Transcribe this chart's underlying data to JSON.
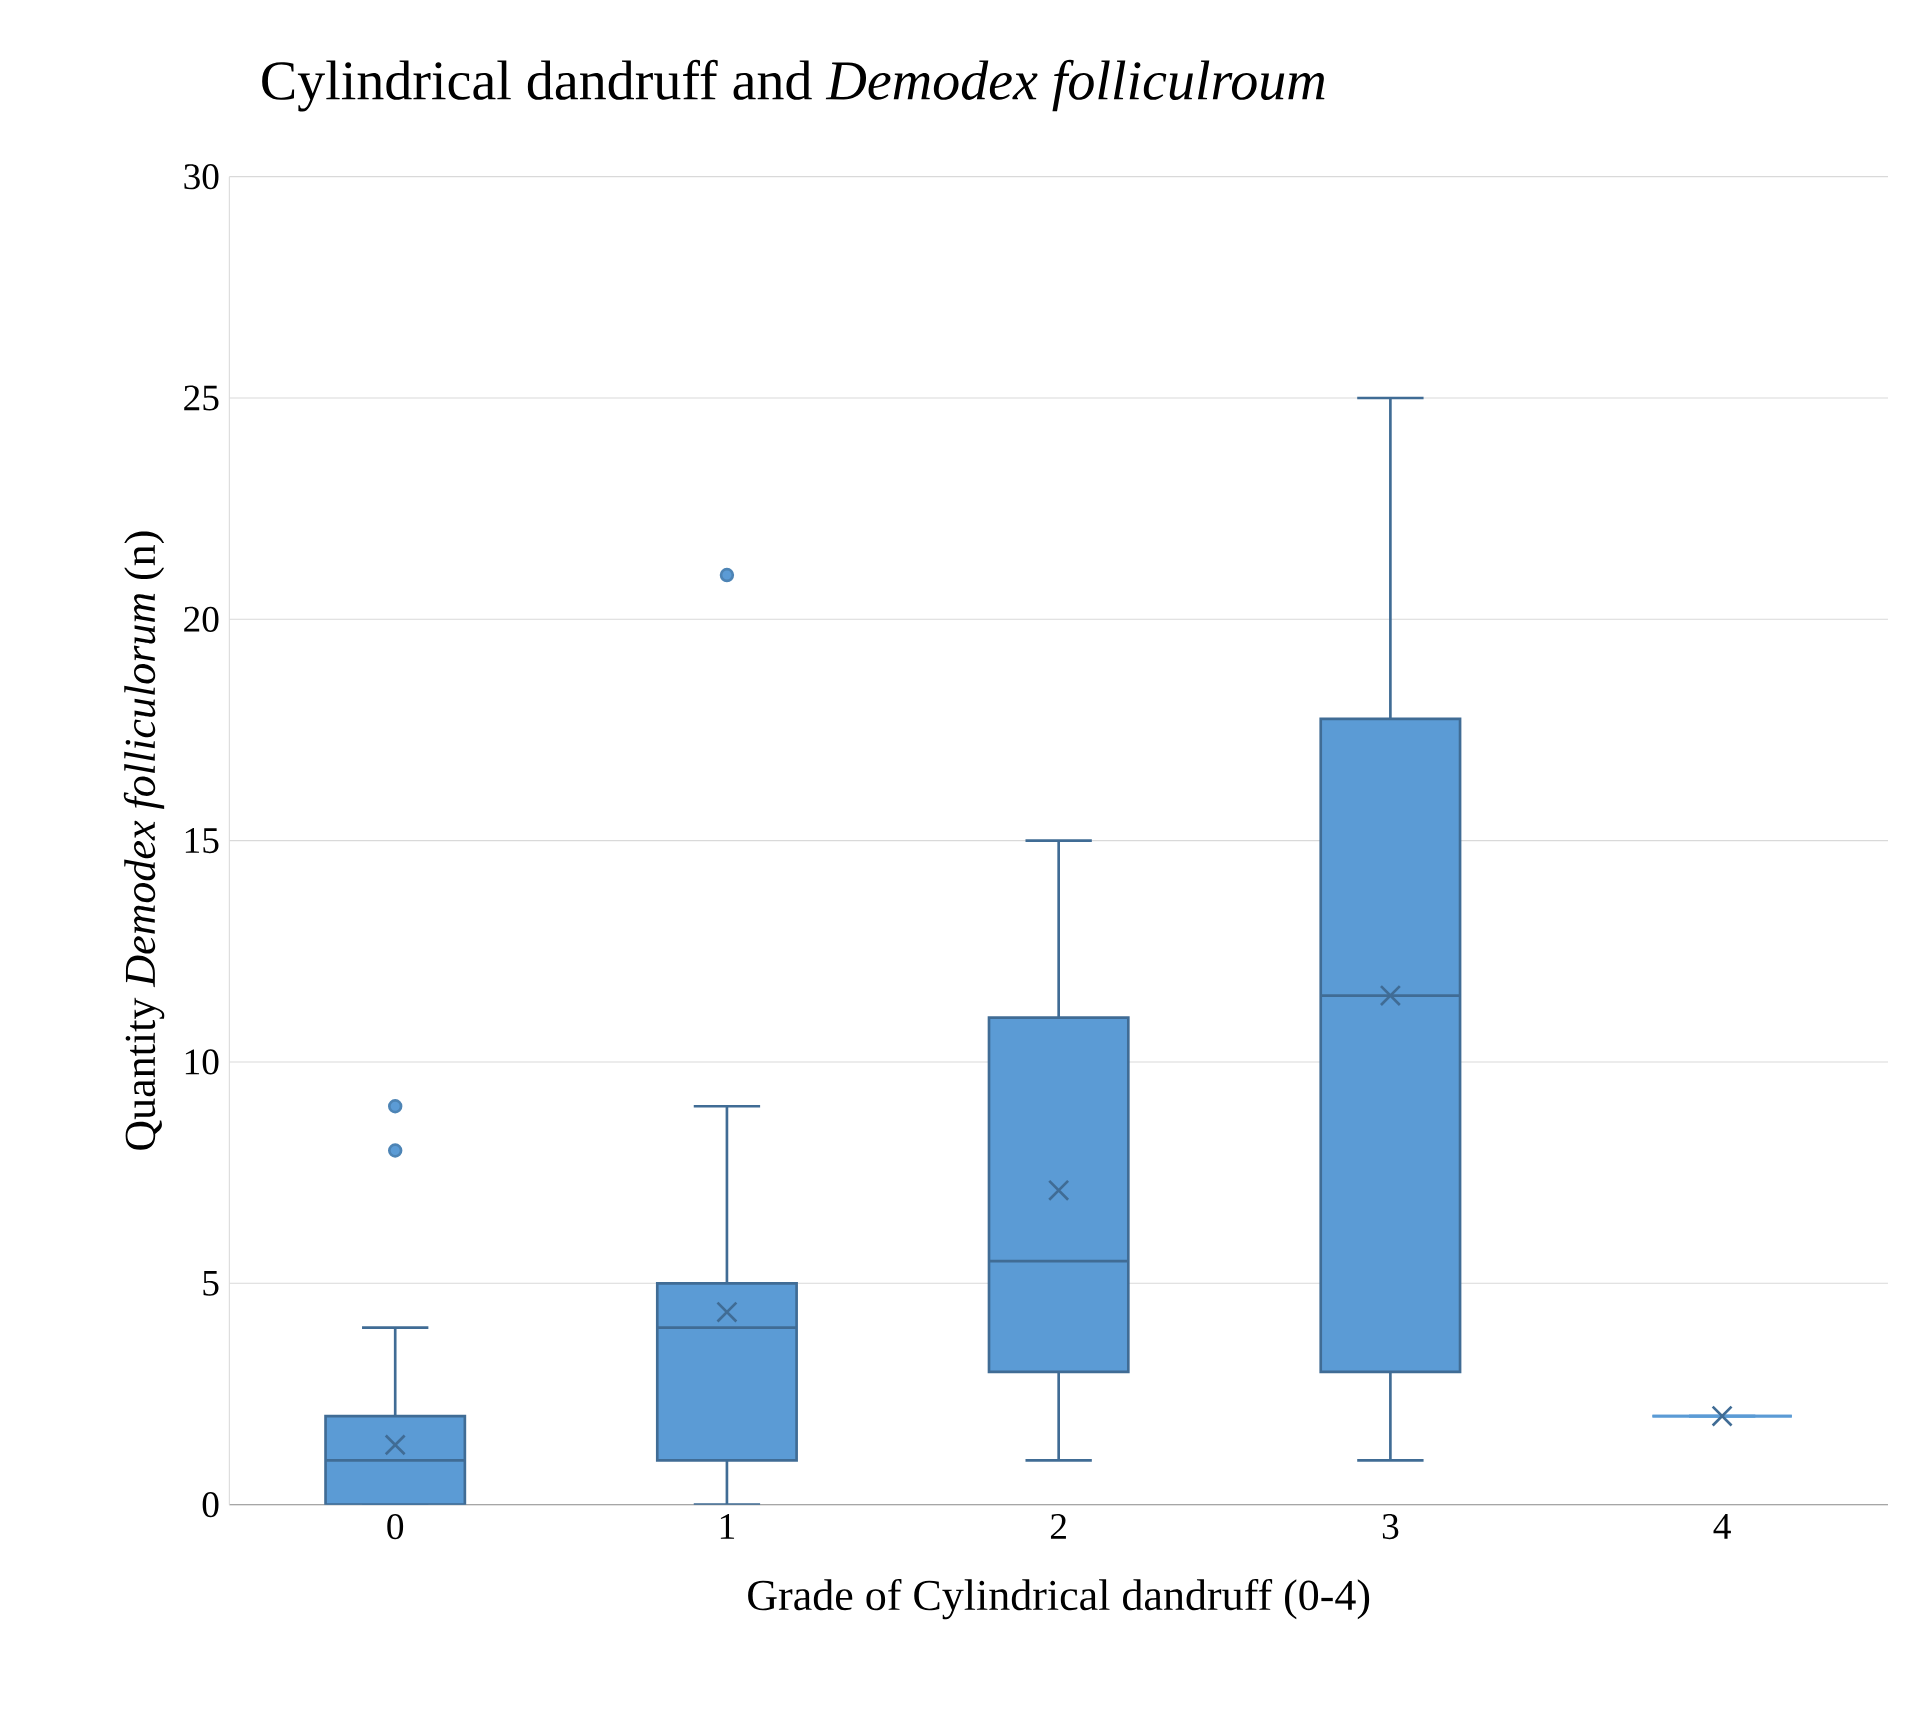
{
  "chart_data": {
    "type": "box",
    "title": "Cylindrical dandruff and *Demodex folliculroum*",
    "xlabel": "Grade of Cylindrical dandruff (0-4)",
    "ylabel": "Quantity *Demodex folliculorum* (n)",
    "categories": [
      "0",
      "1",
      "2",
      "3",
      "4"
    ],
    "boxes": [
      {
        "low": 0,
        "q1": 0,
        "median": 1,
        "q3": 2,
        "high": 4,
        "mean": 1.35,
        "outliers": [
          8,
          9
        ]
      },
      {
        "low": 0,
        "q1": 1,
        "median": 4,
        "q3": 5,
        "high": 9,
        "mean": 4.35,
        "outliers": [
          21
        ]
      },
      {
        "low": 1,
        "q1": 3,
        "median": 5.5,
        "q3": 11,
        "high": 15,
        "mean": 7.1
      },
      {
        "low": 1,
        "q1": 3,
        "median": 11.5,
        "q3": 17.75,
        "high": 25,
        "mean": 11.5
      },
      {
        "low": 2,
        "q1": 2,
        "median": 2,
        "q3": 2,
        "high": 2,
        "mean": 2
      }
    ],
    "color": "#5b9bd5",
    "ylim": [
      0,
      30
    ],
    "yticks": [
      0,
      5,
      10,
      15,
      20,
      25,
      30
    ],
    "grid": "y"
  }
}
